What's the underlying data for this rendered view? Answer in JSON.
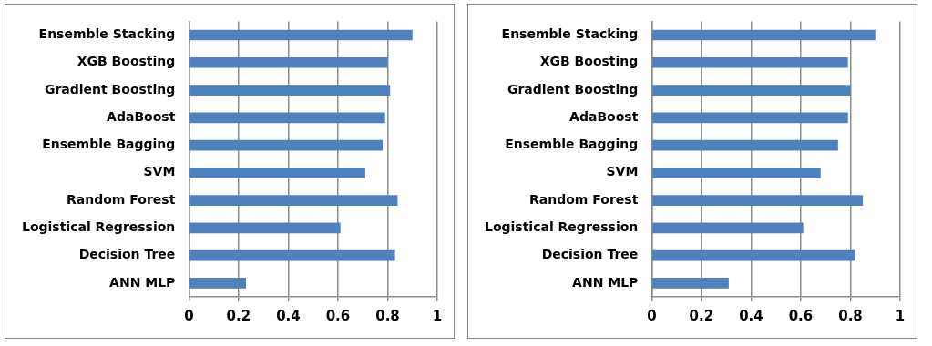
{
  "chart_data": [
    {
      "type": "bar",
      "orientation": "horizontal",
      "categories": [
        "Ensemble Stacking",
        "XGB Boosting",
        "Gradient Boosting",
        "AdaBoost",
        "Ensemble Bagging",
        "SVM",
        "Random Forest",
        "Logistical Regression",
        "Decision Tree",
        "ANN MLP"
      ],
      "values": [
        0.9,
        0.8,
        0.81,
        0.79,
        0.78,
        0.71,
        0.84,
        0.61,
        0.83,
        0.23
      ],
      "color": "#4f81bd",
      "xlim": [
        0,
        1
      ],
      "xticks": [
        0,
        0.2,
        0.4,
        0.6,
        0.8,
        1
      ],
      "grid": "x",
      "legend": false
    },
    {
      "type": "bar",
      "orientation": "horizontal",
      "categories": [
        "Ensemble Stacking",
        "XGB Boosting",
        "Gradient Boosting",
        "AdaBoost",
        "Ensemble Bagging",
        "SVM",
        "Random Forest",
        "Logistical Regression",
        "Decision Tree",
        "ANN MLP"
      ],
      "values": [
        0.9,
        0.79,
        0.8,
        0.79,
        0.75,
        0.68,
        0.85,
        0.61,
        0.82,
        0.31
      ],
      "color": "#4f81bd",
      "xlim": [
        0,
        1
      ],
      "xticks": [
        0,
        0.2,
        0.4,
        0.6,
        0.8,
        1
      ],
      "grid": "x",
      "legend": false
    }
  ]
}
